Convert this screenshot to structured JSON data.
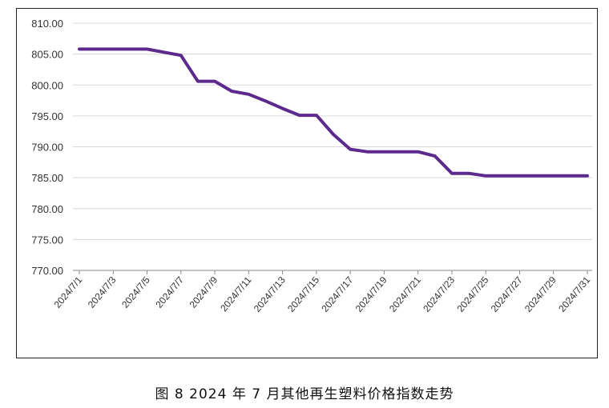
{
  "caption": "图 8  2024 年 7 月其他再生塑料价格指数走势",
  "colors": {
    "line": "#5b2a8c",
    "grid": "#d9d9d9",
    "axis": "#888888"
  },
  "chart_data": {
    "type": "line",
    "title": "",
    "xlabel": "",
    "ylabel": "",
    "ylim": [
      770,
      810
    ],
    "yticks": [
      "770.00",
      "775.00",
      "780.00",
      "785.00",
      "790.00",
      "795.00",
      "800.00",
      "805.00",
      "810.00"
    ],
    "x_tick_labels": [
      "2024/7/1",
      "2024/7/3",
      "2024/7/5",
      "2024/7/7",
      "2024/7/9",
      "2024/7/11",
      "2024/7/13",
      "2024/7/15",
      "2024/7/17",
      "2024/7/19",
      "2024/7/21",
      "2024/7/23",
      "2024/7/25",
      "2024/7/27",
      "2024/7/29",
      "2024/7/31"
    ],
    "grid": true,
    "series": [
      {
        "x": [
          "2024/7/1",
          "2024/7/2",
          "2024/7/3",
          "2024/7/4",
          "2024/7/5",
          "2024/7/6",
          "2024/7/7",
          "2024/7/8",
          "2024/7/9",
          "2024/7/10",
          "2024/7/11",
          "2024/7/12",
          "2024/7/13",
          "2024/7/14",
          "2024/7/15",
          "2024/7/16",
          "2024/7/17",
          "2024/7/18",
          "2024/7/19",
          "2024/7/20",
          "2024/7/21",
          "2024/7/22",
          "2024/7/23",
          "2024/7/24",
          "2024/7/25",
          "2024/7/26",
          "2024/7/27",
          "2024/7/28",
          "2024/7/29",
          "2024/7/30",
          "2024/7/31"
        ],
        "values": [
          805.8,
          805.8,
          805.8,
          805.8,
          805.8,
          805.3,
          804.8,
          800.6,
          800.6,
          799.0,
          798.5,
          797.4,
          796.2,
          795.1,
          795.1,
          792.0,
          789.6,
          789.2,
          789.2,
          789.2,
          789.2,
          788.5,
          785.7,
          785.7,
          785.3,
          785.3,
          785.3,
          785.3,
          785.3,
          785.3,
          785.3
        ]
      }
    ]
  }
}
